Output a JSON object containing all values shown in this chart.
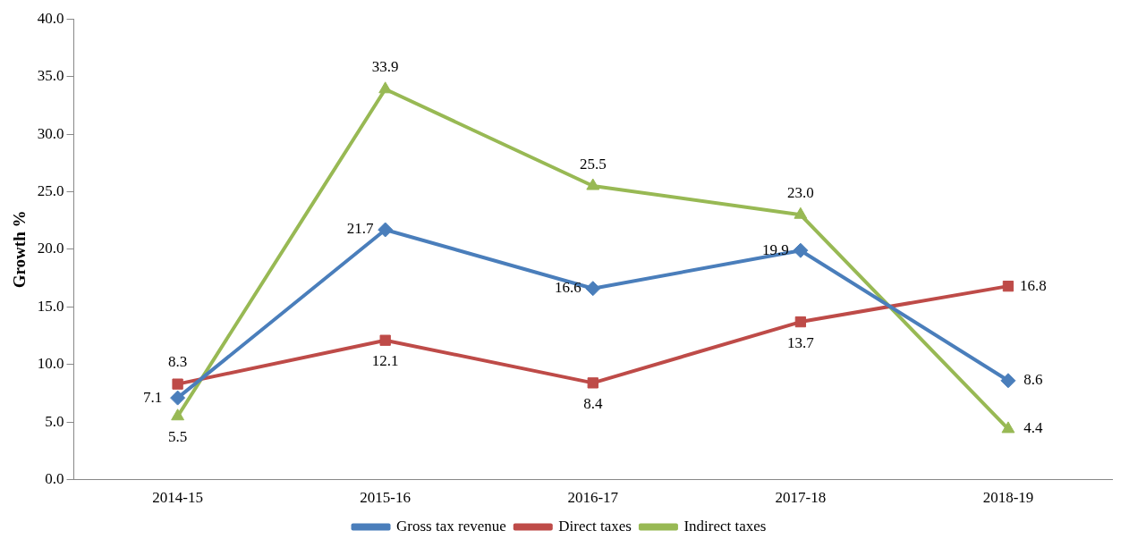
{
  "chart_data": {
    "type": "line",
    "ylabel": "Growth %",
    "categories": [
      "2014-15",
      "2015-16",
      "2016-17",
      "2017-18",
      "2018-19"
    ],
    "series": [
      {
        "name": "Gross tax revenue",
        "color": "#4a7ebb",
        "marker": "diamond",
        "values": [
          7.1,
          21.7,
          16.6,
          19.9,
          8.6
        ],
        "value_labels": [
          "7.1",
          "21.7",
          "16.6",
          "19.9",
          "8.6"
        ]
      },
      {
        "name": "Direct taxes",
        "color": "#be4b48",
        "marker": "square",
        "values": [
          8.3,
          12.1,
          8.4,
          13.7,
          16.8
        ],
        "value_labels": [
          "8.3",
          "12.1",
          "8.4",
          "13.7",
          "16.8"
        ]
      },
      {
        "name": "Indirect taxes",
        "color": "#98b954",
        "marker": "triangle",
        "values": [
          5.5,
          33.9,
          25.5,
          23.0,
          4.4
        ],
        "value_labels": [
          "5.5",
          "33.9",
          "25.5",
          "23.0",
          "4.4"
        ]
      }
    ],
    "ylim": [
      0,
      40
    ],
    "yticks": [
      {
        "value": 0,
        "label": "0.0"
      },
      {
        "value": 5,
        "label": "5.0"
      },
      {
        "value": 10,
        "label": "10.0"
      },
      {
        "value": 15,
        "label": "15.0"
      },
      {
        "value": 20,
        "label": "20.0"
      },
      {
        "value": 25,
        "label": "25.0"
      },
      {
        "value": 30,
        "label": "30.0"
      },
      {
        "value": 35,
        "label": "35.0"
      },
      {
        "value": 40,
        "label": "40.0"
      }
    ],
    "grid": false,
    "legend": "bottom",
    "line_style": "solid"
  }
}
